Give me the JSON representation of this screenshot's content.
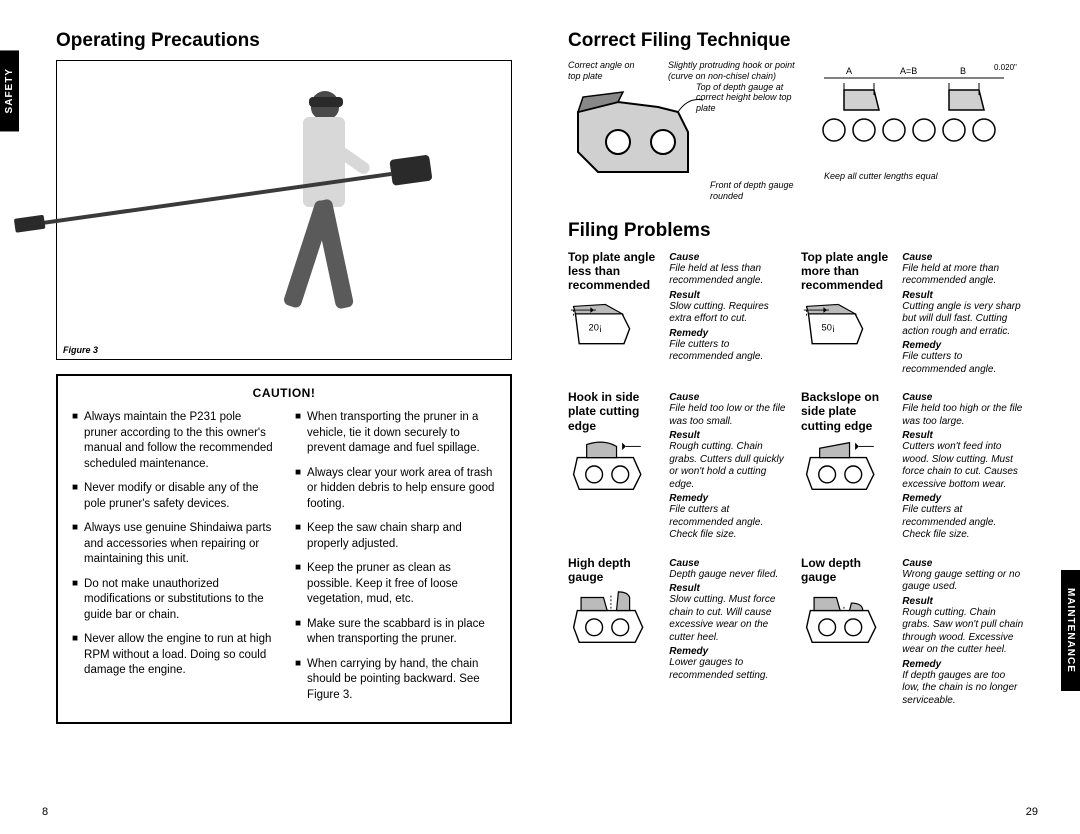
{
  "left": {
    "heading": "Operating Precautions",
    "side_tab": "SAFETY",
    "figure_label": "Figure 3",
    "caution_title": "CAUTION!",
    "caution_left": [
      "Always maintain the P231 pole pruner according to the this owner's manual and follow the recommended scheduled maintenance.",
      "Never modify or disable any of the pole pruner's safety devices.",
      "Always use genuine Shindaiwa parts and accessories when repairing or maintaining this unit.",
      "Do not make unauthorized modifications or substitutions to the guide bar or chain.",
      "Never allow the engine to run at high RPM without a load. Doing so could damage the engine."
    ],
    "caution_right": [
      "When transporting the pruner in a vehicle, tie it down securely to prevent damage and fuel spillage.",
      "Always clear your work area of trash or hidden debris to help ensure good footing.",
      "Keep the saw chain sharp and properly adjusted.",
      "Keep the pruner as clean as possible. Keep it free of loose vegetation, mud, etc.",
      "Make sure the scabbard is in place when transporting the pruner.",
      "When carrying by hand, the chain should be pointing backward. See Figure 3."
    ],
    "page_num": "8"
  },
  "right": {
    "heading_correct": "Correct Filing Technique",
    "heading_problems": "Filing Problems",
    "side_tab": "MAINTENANCE",
    "page_num": "29",
    "cf_labels": {
      "a": "Correct angle on top plate",
      "b": "Slightly protruding hook or point (curve on non-chisel chain)",
      "c": "Top of depth gauge at correct height below top plate",
      "d": "Front of depth gauge rounded",
      "e": "Keep all cutter lengths equal",
      "f": "0.020\"",
      "ga": "A",
      "gab": "A=B",
      "gb": "B"
    },
    "problems": [
      {
        "title": "Top plate angle less than recommended",
        "angle": "20¡",
        "cause": "File held at less than recommended angle.",
        "result": "Slow cutting. Requires extra effort to cut.",
        "remedy": "File cutters to recommended angle."
      },
      {
        "title": "Top plate angle more than recommended",
        "angle": "50¡",
        "cause": "File held at more than recommended angle.",
        "result": "Cutting angle is very sharp but will dull fast. Cutting action rough and erratic.",
        "remedy": "File cutters to recommended angle."
      },
      {
        "title": "Hook in side plate cutting edge",
        "cause": "File held too low or the file was too small.",
        "result": "Rough cutting. Chain grabs. Cutters dull quickly or won't hold a cutting edge.",
        "remedy": "File cutters at recommended angle. Check file size."
      },
      {
        "title": "Backslope on side plate cutting edge",
        "cause": "File held too high or the file was too large.",
        "result": "Cutters won't feed into wood. Slow cutting. Must force chain to cut. Causes excessive bottom wear.",
        "remedy": "File cutters at recommended angle. Check file size."
      },
      {
        "title": "High depth gauge",
        "cause": "Depth gauge never filed.",
        "result": "Slow cutting. Must force chain to cut. Will cause excessive wear on the cutter heel.",
        "remedy": "Lower gauges to recommended setting."
      },
      {
        "title": "Low depth gauge",
        "cause": "Wrong gauge setting or no gauge used.",
        "result": "Rough cutting. Chain grabs. Saw won't pull chain through wood. Excessive wear on the cutter heel.",
        "remedy": "If depth gauges are too low, the chain is no longer serviceable."
      }
    ],
    "labels": {
      "cause": "Cause",
      "result": "Result",
      "remedy": "Remedy"
    }
  },
  "colors": {
    "black": "#000000",
    "gray_fill": "#d0d0d0",
    "dark_gray": "#4a4a4a"
  }
}
